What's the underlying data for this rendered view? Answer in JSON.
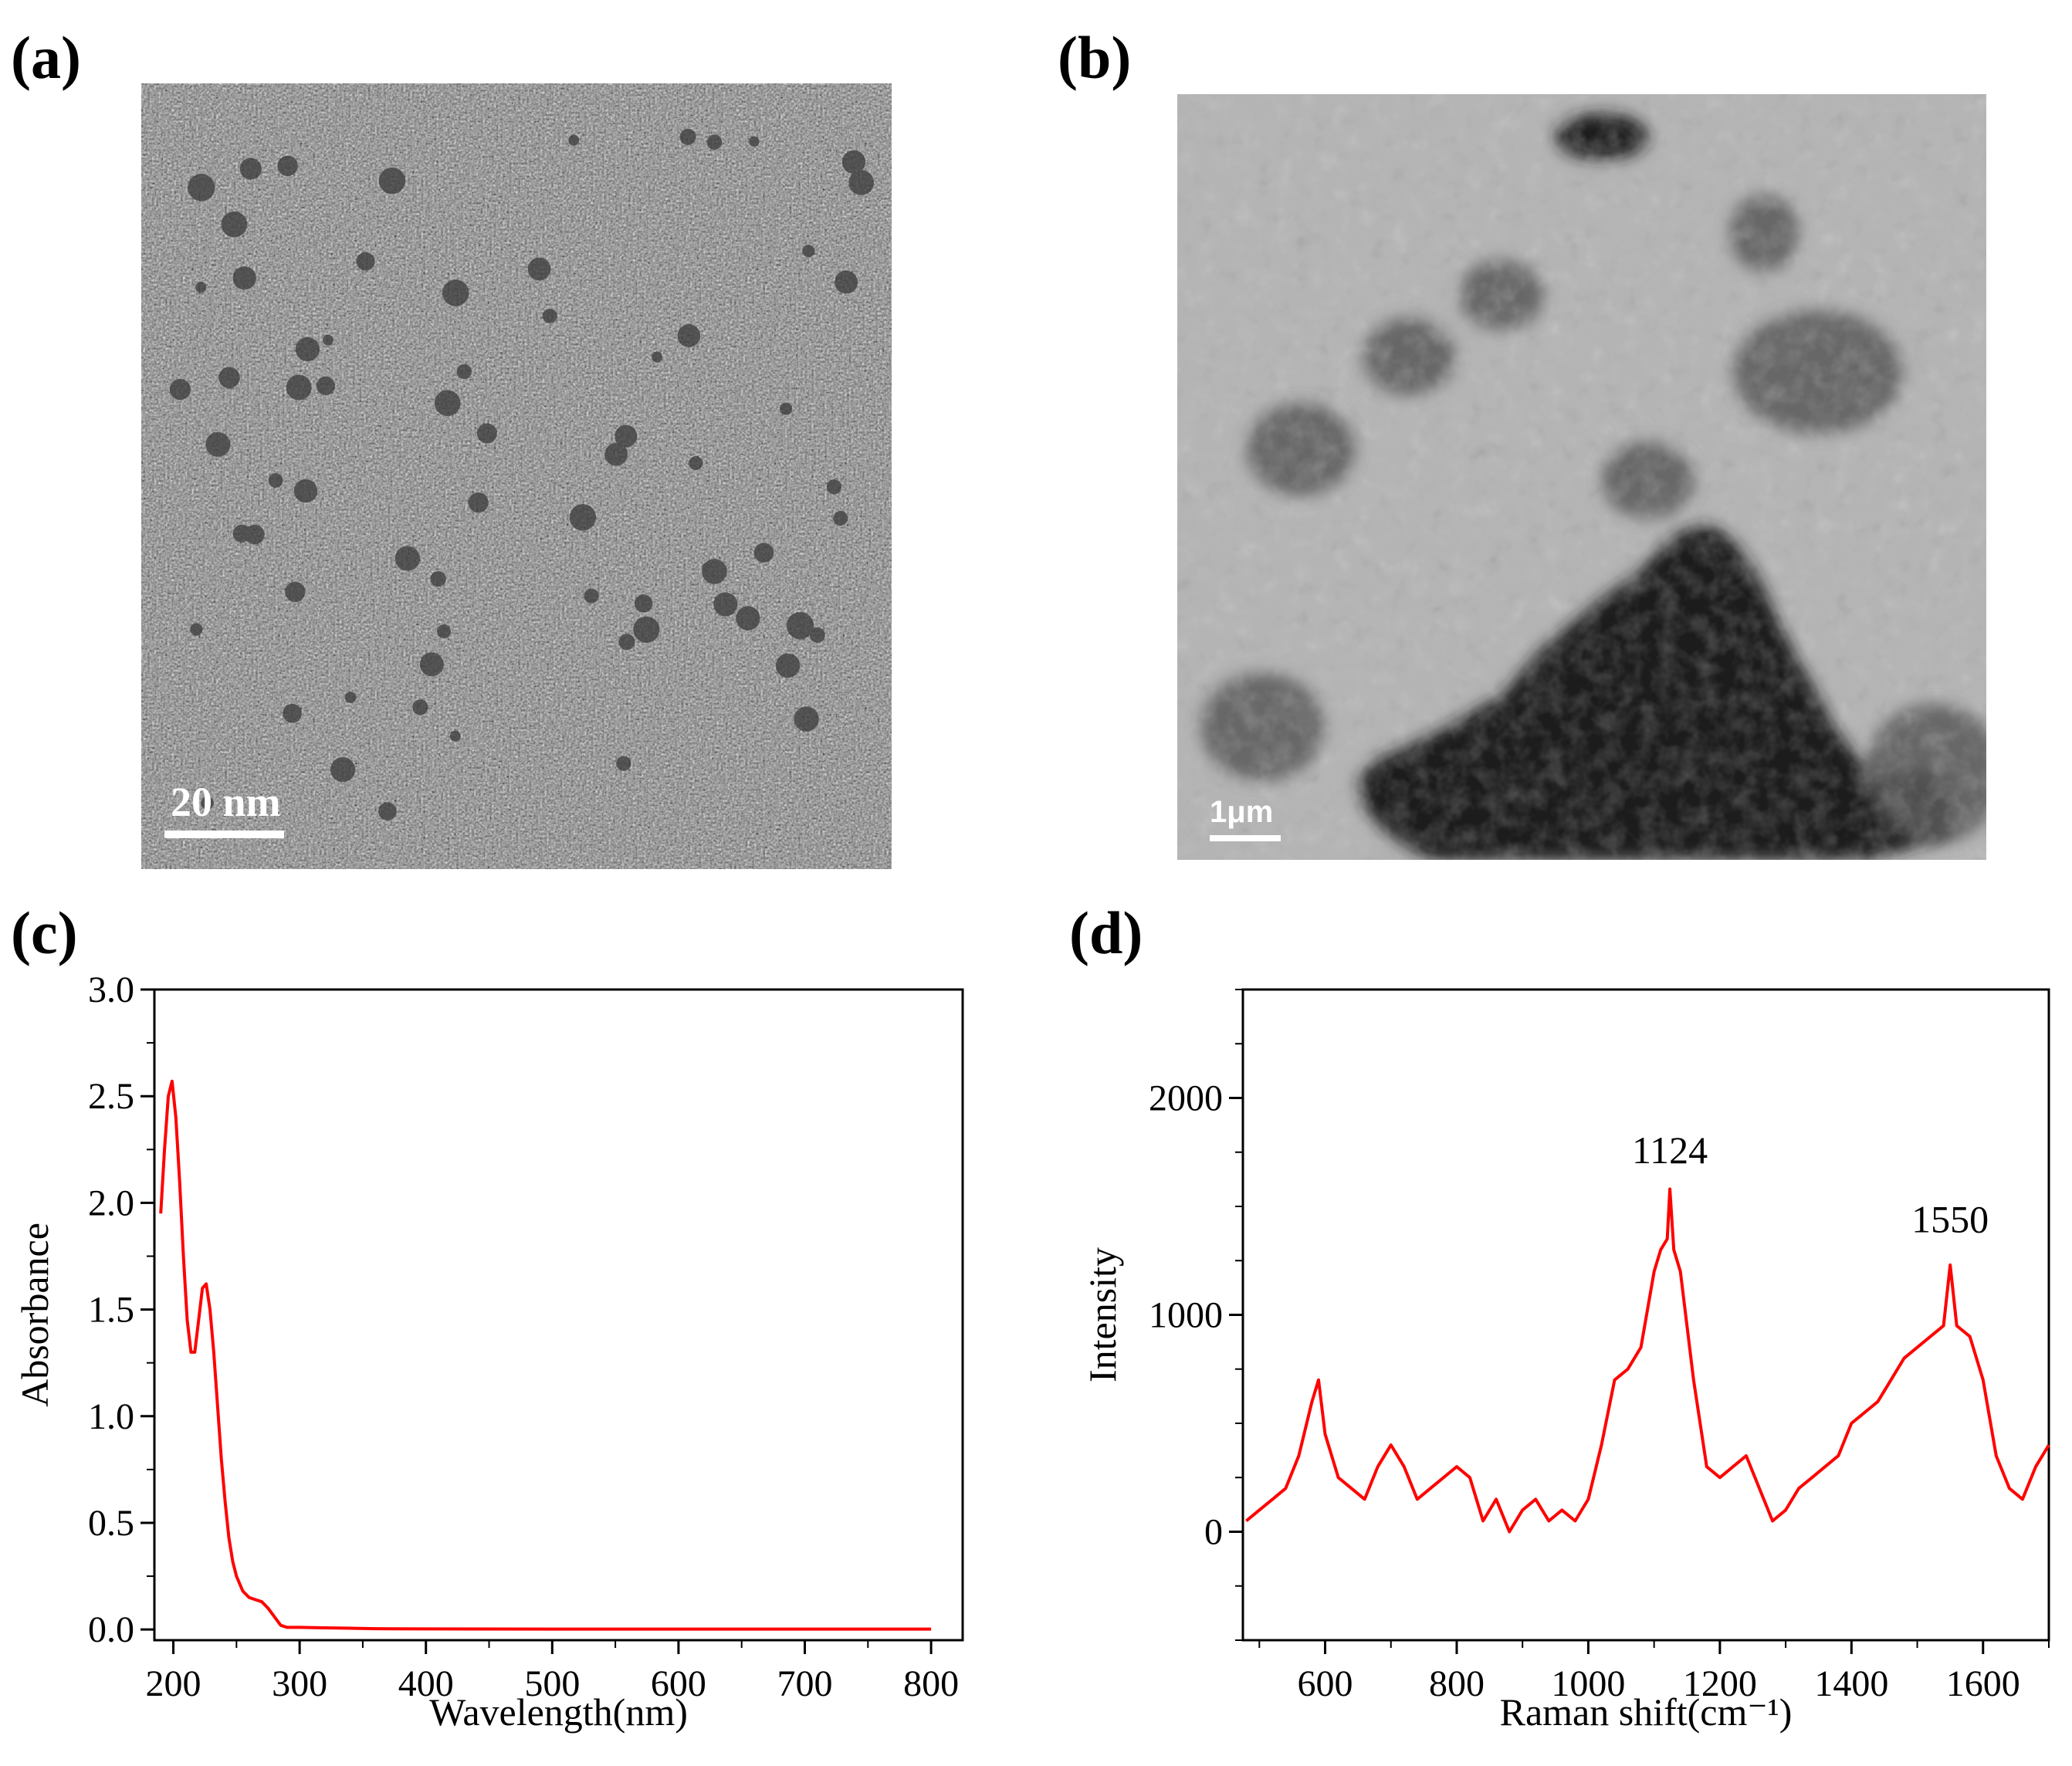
{
  "panels": {
    "a": {
      "label": "(a)",
      "scale_bar_label": "20  nm"
    },
    "b": {
      "label": "(b)",
      "scale_bar_label": "1μm"
    },
    "c": {
      "label": "(c)"
    },
    "d": {
      "label": "(d)"
    }
  },
  "chart_data": [
    {
      "panel": "c",
      "type": "line",
      "title": "",
      "xlabel": "Wavelength(nm)",
      "ylabel": "Absorbance",
      "xlim": [
        185,
        825
      ],
      "ylim": [
        -0.05,
        3.0
      ],
      "xticks": [
        "200",
        "300",
        "400",
        "500",
        "600",
        "700",
        "800"
      ],
      "yticks": [
        "0.0",
        "0.5",
        "1.0",
        "1.5",
        "2.0",
        "2.5",
        "3.0"
      ],
      "grid": false,
      "series_color": "#ff0000",
      "x": [
        190,
        193,
        196,
        199,
        202,
        205,
        208,
        211,
        214,
        217,
        220,
        223,
        226,
        229,
        232,
        235,
        238,
        241,
        244,
        247,
        250,
        255,
        260,
        265,
        270,
        275,
        280,
        285,
        290,
        300,
        320,
        340,
        360,
        400,
        500,
        600,
        700,
        800
      ],
      "y": [
        1.95,
        2.25,
        2.5,
        2.57,
        2.4,
        2.1,
        1.75,
        1.45,
        1.3,
        1.3,
        1.45,
        1.6,
        1.62,
        1.5,
        1.3,
        1.05,
        0.8,
        0.6,
        0.43,
        0.32,
        0.25,
        0.18,
        0.15,
        0.14,
        0.13,
        0.1,
        0.06,
        0.02,
        0.01,
        0.01,
        0.008,
        0.006,
        0.004,
        0.003,
        0.002,
        0.002,
        0.002,
        0.002
      ]
    },
    {
      "panel": "d",
      "type": "line",
      "title": "",
      "xlabel": "Raman shift(cm⁻¹)",
      "ylabel": "Intensity",
      "xlim": [
        475,
        1700
      ],
      "ylim": [
        -500,
        2500
      ],
      "xticks": [
        "600",
        "800",
        "1000",
        "1200",
        "1400",
        "1600"
      ],
      "yticks": [
        "0",
        "1000",
        "2000"
      ],
      "grid": false,
      "series_color": "#ff0000",
      "annotations": [
        {
          "text": "1124",
          "x": 1124,
          "y": 1700
        },
        {
          "text": "1550",
          "x": 1550,
          "y": 1380
        }
      ],
      "x": [
        480,
        500,
        520,
        540,
        560,
        580,
        590,
        600,
        620,
        640,
        660,
        680,
        700,
        720,
        740,
        760,
        780,
        800,
        820,
        840,
        860,
        880,
        900,
        920,
        940,
        960,
        980,
        1000,
        1020,
        1040,
        1060,
        1080,
        1100,
        1110,
        1120,
        1124,
        1130,
        1140,
        1160,
        1180,
        1200,
        1220,
        1240,
        1260,
        1280,
        1300,
        1320,
        1340,
        1360,
        1380,
        1400,
        1420,
        1440,
        1460,
        1480,
        1500,
        1520,
        1540,
        1550,
        1560,
        1580,
        1600,
        1620,
        1640,
        1660,
        1680,
        1700
      ],
      "y": [
        50,
        100,
        150,
        200,
        350,
        600,
        700,
        450,
        250,
        200,
        150,
        300,
        400,
        300,
        150,
        200,
        250,
        300,
        250,
        50,
        150,
        0,
        100,
        150,
        50,
        100,
        50,
        150,
        400,
        700,
        750,
        850,
        1200,
        1300,
        1350,
        1580,
        1300,
        1200,
        700,
        300,
        250,
        300,
        350,
        200,
        50,
        100,
        200,
        250,
        300,
        350,
        500,
        550,
        600,
        700,
        800,
        850,
        900,
        950,
        1230,
        950,
        900,
        700,
        350,
        200,
        150,
        300,
        400
      ]
    }
  ]
}
